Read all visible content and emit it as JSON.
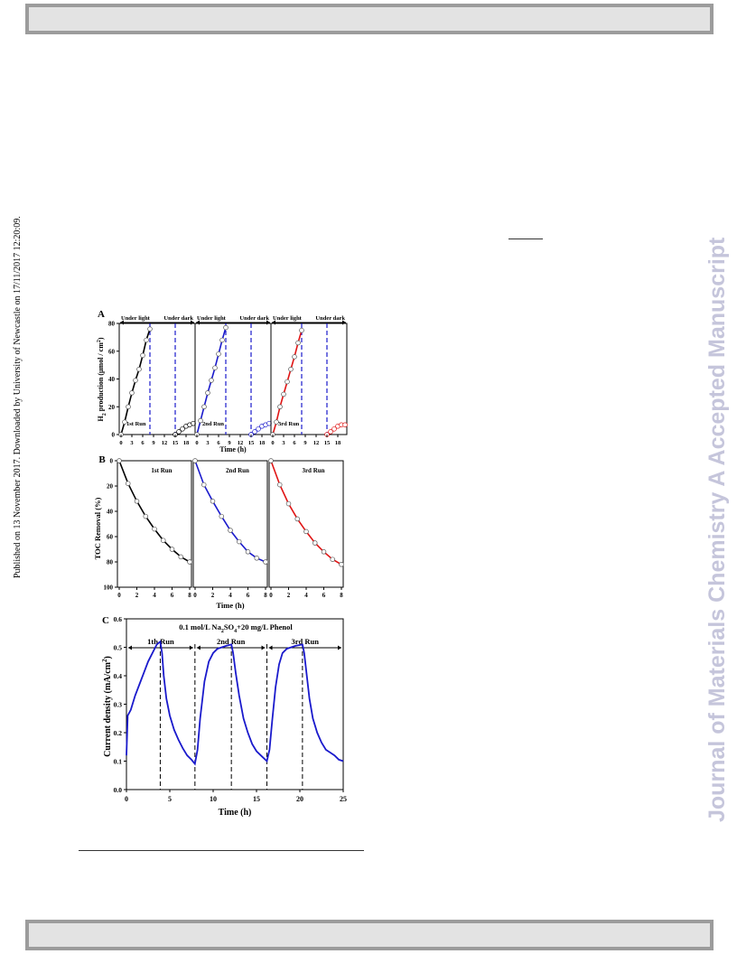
{
  "sidebar_left": "Published on 13 November 2017. Downloaded by University of Newcastle on 17/11/2017 12:20:09.",
  "watermark": "Journal of Materials Chemistry A Accepted Manuscript",
  "colors": {
    "run1": "#000000",
    "run2": "#1a1acc",
    "run3": "#e01414",
    "marker_fill": "#ffffff",
    "band": "#e3e3e3",
    "band_border": "#9c9c9c",
    "watermark": "#c5c5db"
  },
  "chart_data": [
    {
      "panel": "A",
      "type": "scatter",
      "ylabel_main": "H",
      "ylabel_sub": "2",
      "ylabel_rest": " production (μmol / cm",
      "ylabel_sup": "2",
      "ylabel_end": ")",
      "xlabel": "Time (h)",
      "ylim": [
        0,
        80
      ],
      "yticks": [
        0,
        20,
        40,
        60,
        80
      ],
      "xlim": [
        0,
        20
      ],
      "xticks": [
        0,
        3,
        6,
        9,
        12,
        15,
        18
      ],
      "light_label": "Under light",
      "dark_label": "Under dark",
      "vlines": [
        8,
        15
      ],
      "series": [
        {
          "name": "1st Run",
          "light": [
            [
              0,
              0
            ],
            [
              1,
              9
            ],
            [
              2,
              20
            ],
            [
              3,
              30
            ],
            [
              4,
              39
            ],
            [
              5,
              47
            ],
            [
              6,
              57
            ],
            [
              7,
              68
            ],
            [
              8,
              76
            ]
          ],
          "dark": [
            [
              15,
              0
            ],
            [
              16,
              2
            ],
            [
              17,
              4
            ],
            [
              18,
              6
            ],
            [
              19,
              7
            ],
            [
              20,
              8
            ]
          ]
        },
        {
          "name": "2nd Run",
          "light": [
            [
              0,
              0
            ],
            [
              1,
              10
            ],
            [
              2,
              20
            ],
            [
              3,
              30
            ],
            [
              4,
              39
            ],
            [
              5,
              48
            ],
            [
              6,
              58
            ],
            [
              7,
              68
            ],
            [
              8,
              77
            ]
          ],
          "dark": [
            [
              15,
              0
            ],
            [
              16,
              2
            ],
            [
              17,
              4
            ],
            [
              18,
              6
            ],
            [
              19,
              7
            ],
            [
              20,
              8
            ]
          ]
        },
        {
          "name": "3rd Run",
          "light": [
            [
              0,
              0
            ],
            [
              1,
              9
            ],
            [
              2,
              20
            ],
            [
              3,
              29
            ],
            [
              4,
              38
            ],
            [
              5,
              47
            ],
            [
              6,
              56
            ],
            [
              7,
              66
            ],
            [
              8,
              75
            ]
          ],
          "dark": [
            [
              15,
              0
            ],
            [
              16,
              2
            ],
            [
              17,
              4
            ],
            [
              18,
              6
            ],
            [
              19,
              7
            ],
            [
              20,
              7
            ]
          ]
        }
      ]
    },
    {
      "panel": "B",
      "type": "line",
      "ylabel": "TOC Removal (%)",
      "xlabel": "Time (h)",
      "ylim": [
        0,
        100
      ],
      "yticks": [
        0,
        20,
        40,
        60,
        80,
        100
      ],
      "xlim": [
        0,
        8
      ],
      "xticks": [
        0,
        2,
        4,
        6,
        8
      ],
      "series": [
        {
          "name": "1st Run",
          "points": [
            [
              0,
              0
            ],
            [
              1,
              18
            ],
            [
              2,
              32
            ],
            [
              3,
              44
            ],
            [
              4,
              54
            ],
            [
              5,
              63
            ],
            [
              6,
              70
            ],
            [
              7,
              76
            ],
            [
              8,
              80
            ]
          ]
        },
        {
          "name": "2nd Run",
          "points": [
            [
              0,
              0
            ],
            [
              1,
              19
            ],
            [
              2,
              32
            ],
            [
              3,
              44
            ],
            [
              4,
              55
            ],
            [
              5,
              64
            ],
            [
              6,
              72
            ],
            [
              7,
              77
            ],
            [
              8,
              80
            ]
          ]
        },
        {
          "name": "3rd Run",
          "points": [
            [
              0,
              0
            ],
            [
              1,
              19
            ],
            [
              2,
              34
            ],
            [
              3,
              46
            ],
            [
              4,
              56
            ],
            [
              5,
              65
            ],
            [
              6,
              72
            ],
            [
              7,
              78
            ],
            [
              8,
              82
            ]
          ]
        }
      ]
    },
    {
      "panel": "C",
      "type": "line",
      "title_main": "0.1 mol/L Na",
      "title_sub1": "2",
      "title_mid": "SO",
      "title_sub2": "4",
      "title_end": "+20 mg/L Phenol",
      "ylabel_main": "Current density (mA/cm",
      "ylabel_sup": "2",
      "ylabel_end": ")",
      "xlabel": "Time (h)",
      "ylim": [
        0,
        0.6
      ],
      "yticks": [
        "0.0",
        "0.1",
        "0.2",
        "0.3",
        "0.4",
        "0.5",
        "0.6"
      ],
      "xlim": [
        0,
        25
      ],
      "xticks": [
        0,
        5,
        10,
        15,
        20,
        25
      ],
      "vlines": [
        3.9,
        7.9,
        12.1,
        16.2,
        20.3
      ],
      "run_labels": [
        "1th Run",
        "2nd Run",
        "3rd Run"
      ],
      "series": [
        {
          "name": "current",
          "points": [
            [
              0,
              0.12
            ],
            [
              0.15,
              0.26
            ],
            [
              0.5,
              0.28
            ],
            [
              1,
              0.33
            ],
            [
              1.5,
              0.37
            ],
            [
              2,
              0.41
            ],
            [
              2.5,
              0.45
            ],
            [
              3,
              0.48
            ],
            [
              3.5,
              0.51
            ],
            [
              3.9,
              0.52
            ],
            [
              4.1,
              0.48
            ],
            [
              4.3,
              0.4
            ],
            [
              4.6,
              0.32
            ],
            [
              5,
              0.26
            ],
            [
              5.5,
              0.21
            ],
            [
              6,
              0.175
            ],
            [
              6.5,
              0.145
            ],
            [
              7,
              0.12
            ],
            [
              7.5,
              0.105
            ],
            [
              7.9,
              0.09
            ],
            [
              8.2,
              0.14
            ],
            [
              8.5,
              0.25
            ],
            [
              9,
              0.38
            ],
            [
              9.5,
              0.45
            ],
            [
              10,
              0.48
            ],
            [
              10.5,
              0.495
            ],
            [
              11,
              0.5
            ],
            [
              11.5,
              0.505
            ],
            [
              12.1,
              0.51
            ],
            [
              12.3,
              0.48
            ],
            [
              12.6,
              0.41
            ],
            [
              13,
              0.33
            ],
            [
              13.5,
              0.25
            ],
            [
              14,
              0.2
            ],
            [
              14.5,
              0.16
            ],
            [
              15,
              0.135
            ],
            [
              15.5,
              0.12
            ],
            [
              16.2,
              0.1
            ],
            [
              16.5,
              0.14
            ],
            [
              16.8,
              0.24
            ],
            [
              17.2,
              0.36
            ],
            [
              17.6,
              0.44
            ],
            [
              18,
              0.48
            ],
            [
              18.5,
              0.495
            ],
            [
              19,
              0.5
            ],
            [
              19.5,
              0.505
            ],
            [
              20.3,
              0.51
            ],
            [
              20.5,
              0.48
            ],
            [
              20.8,
              0.4
            ],
            [
              21.1,
              0.32
            ],
            [
              21.5,
              0.25
            ],
            [
              22,
              0.2
            ],
            [
              22.5,
              0.165
            ],
            [
              23,
              0.14
            ],
            [
              23.5,
              0.13
            ],
            [
              24,
              0.12
            ],
            [
              24.5,
              0.105
            ],
            [
              25,
              0.1
            ]
          ]
        }
      ]
    }
  ]
}
